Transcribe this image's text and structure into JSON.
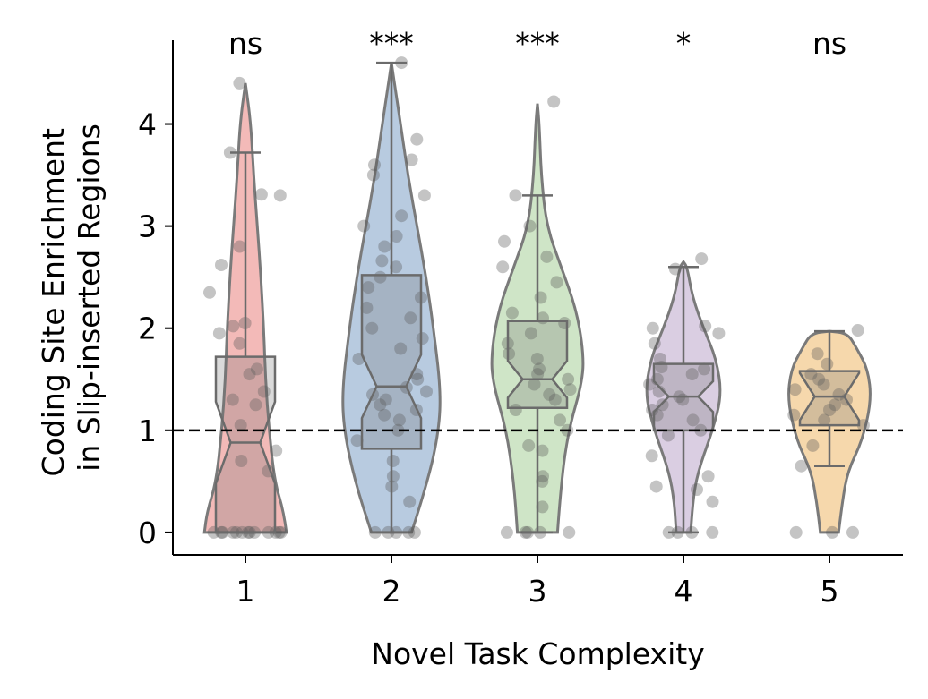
{
  "chart_data": {
    "type": "violin",
    "xlabel": "Novel Task Complexity",
    "ylabel_lines": [
      "Coding Site Enrichment",
      "in Slip-inserted Regions"
    ],
    "categories": [
      "1",
      "2",
      "3",
      "4",
      "5"
    ],
    "y_ticks": [
      0,
      1,
      2,
      3,
      4
    ],
    "y_tick_labels": [
      "0",
      "1",
      "2",
      "3",
      "4"
    ],
    "ylim": [
      -0.22,
      4.82
    ],
    "reference_line": 1,
    "colors": [
      "#f2b6b4",
      "#b4c8de",
      "#cce4c4",
      "#d8cbe0",
      "#f5d6a8"
    ],
    "significance": [
      "ns",
      "***",
      "***",
      "*",
      "ns"
    ],
    "groups": [
      {
        "category": "1",
        "box": {
          "q1": 0.0,
          "median": 0.88,
          "q3": 1.72,
          "whisker_low": 0.0,
          "whisker_high": 3.72,
          "notch_low": 0.48,
          "notch_high": 1.28
        },
        "violin": [
          [
            0.0,
            0.45
          ],
          [
            0.2,
            0.42
          ],
          [
            0.5,
            0.32
          ],
          [
            1.0,
            0.26
          ],
          [
            1.5,
            0.22
          ],
          [
            2.0,
            0.2
          ],
          [
            2.5,
            0.17
          ],
          [
            3.0,
            0.13
          ],
          [
            3.5,
            0.09
          ],
          [
            4.0,
            0.06
          ],
          [
            4.4,
            0.0
          ]
        ],
        "points": [
          0.0,
          0.0,
          0.0,
          0.0,
          0.0,
          0.0,
          0.0,
          0.0,
          0.0,
          0.0,
          0.0,
          0.0,
          0.0,
          0.6,
          0.7,
          0.8,
          1.05,
          1.25,
          1.3,
          1.38,
          1.55,
          1.6,
          1.85,
          1.95,
          2.02,
          2.05,
          2.35,
          2.62,
          2.8,
          3.3,
          3.31,
          3.72,
          4.4
        ]
      },
      {
        "category": "2",
        "box": {
          "q1": 0.82,
          "median": 1.43,
          "q3": 2.52,
          "whisker_low": 0.0,
          "whisker_high": 4.6,
          "notch_low": 1.12,
          "notch_high": 1.74
        },
        "violin": [
          [
            0.0,
            0.22
          ],
          [
            0.5,
            0.4
          ],
          [
            1.0,
            0.52
          ],
          [
            1.4,
            0.54
          ],
          [
            2.0,
            0.46
          ],
          [
            2.5,
            0.38
          ],
          [
            3.0,
            0.28
          ],
          [
            3.5,
            0.18
          ],
          [
            4.0,
            0.1
          ],
          [
            4.3,
            0.05
          ],
          [
            4.6,
            0.0
          ]
        ],
        "points": [
          0.0,
          0.0,
          0.0,
          0.0,
          0.0,
          0.3,
          0.45,
          0.55,
          0.7,
          0.9,
          1.0,
          1.1,
          1.15,
          1.2,
          1.25,
          1.3,
          1.35,
          1.38,
          1.42,
          1.5,
          1.55,
          1.7,
          1.8,
          1.9,
          2.0,
          2.1,
          2.2,
          2.3,
          2.4,
          2.5,
          2.6,
          2.66,
          2.8,
          2.9,
          3.0,
          3.1,
          3.3,
          3.5,
          3.6,
          3.65,
          3.85,
          4.6
        ]
      },
      {
        "category": "3",
        "box": {
          "q1": 1.22,
          "median": 1.5,
          "q3": 2.07,
          "whisker_low": 0.0,
          "whisker_high": 3.3,
          "notch_low": 1.32,
          "notch_high": 1.68
        },
        "violin": [
          [
            0.0,
            0.22
          ],
          [
            0.5,
            0.26
          ],
          [
            1.0,
            0.34
          ],
          [
            1.5,
            0.5
          ],
          [
            1.8,
            0.5
          ],
          [
            2.2,
            0.42
          ],
          [
            2.6,
            0.26
          ],
          [
            3.0,
            0.1
          ],
          [
            3.5,
            0.04
          ],
          [
            4.0,
            0.02
          ],
          [
            4.2,
            0.0
          ]
        ],
        "points": [
          0.0,
          0.0,
          0.0,
          0.0,
          0.0,
          0.25,
          0.5,
          0.55,
          0.8,
          0.85,
          1.0,
          1.1,
          1.2,
          1.3,
          1.35,
          1.4,
          1.45,
          1.5,
          1.55,
          1.6,
          1.7,
          1.75,
          1.85,
          1.95,
          2.05,
          2.1,
          2.15,
          2.3,
          2.45,
          2.6,
          2.7,
          2.85,
          3.0,
          3.3,
          4.22
        ]
      },
      {
        "category": "4",
        "box": {
          "q1": 1.0,
          "median": 1.33,
          "q3": 1.65,
          "whisker_low": 0.0,
          "whisker_high": 2.6,
          "notch_low": 1.18,
          "notch_high": 1.48
        },
        "violin": [
          [
            0.0,
            0.08
          ],
          [
            0.3,
            0.1
          ],
          [
            0.6,
            0.16
          ],
          [
            1.0,
            0.32
          ],
          [
            1.35,
            0.42
          ],
          [
            1.7,
            0.36
          ],
          [
            2.0,
            0.22
          ],
          [
            2.3,
            0.1
          ],
          [
            2.6,
            0.04
          ],
          [
            2.65,
            0.0
          ]
        ],
        "points": [
          0.0,
          0.0,
          0.0,
          0.0,
          0.3,
          0.42,
          0.45,
          0.55,
          0.75,
          0.95,
          1.0,
          1.1,
          1.15,
          1.2,
          1.25,
          1.3,
          1.33,
          1.38,
          1.45,
          1.5,
          1.55,
          1.6,
          1.62,
          1.7,
          1.85,
          1.95,
          2.0,
          2.02,
          2.58,
          2.68
        ]
      },
      {
        "category": "5",
        "box": {
          "q1": 1.05,
          "median": 1.33,
          "q3": 1.58,
          "whisker_low": 0.65,
          "whisker_high": 1.97,
          "notch_low": 1.1,
          "notch_high": 1.56
        },
        "violin": [
          [
            0.0,
            0.1
          ],
          [
            0.3,
            0.14
          ],
          [
            0.6,
            0.2
          ],
          [
            0.9,
            0.36
          ],
          [
            1.3,
            0.46
          ],
          [
            1.6,
            0.42
          ],
          [
            1.8,
            0.3
          ],
          [
            1.95,
            0.2
          ],
          [
            1.97,
            0.0
          ]
        ],
        "points": [
          0.0,
          0.0,
          0.0,
          0.65,
          0.85,
          1.05,
          1.1,
          1.15,
          1.2,
          1.25,
          1.3,
          1.35,
          1.4,
          1.45,
          1.5,
          1.55,
          1.65,
          1.75,
          1.98
        ]
      }
    ]
  }
}
